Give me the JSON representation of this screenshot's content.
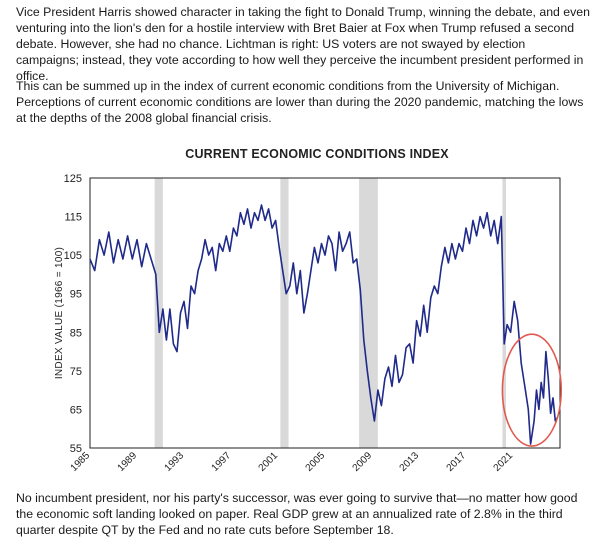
{
  "article": {
    "p1": "Vice President Harris showed character in taking the fight to Donald Trump, winning the debate, and even venturing into the lion's den for a hostile interview with Bret Baier at Fox when Trump refused a second debate. However, she had no chance. Lichtman is right: US voters are not swayed by election campaigns; instead, they vote according to how well they perceive the incumbent president performed in office.",
    "p2": "This can be summed up in the index of current economic conditions from the University of Michigan. Perceptions of current economic conditions are lower than during the 2020 pandemic, matching the lows at the depths of the 2008 global financial crisis.",
    "p3": "No incumbent president, nor his party's successor, was ever going to survive that—no matter how good the economic soft landing looked on paper. Real GDP grew at an annualized rate of 2.8% in the third quarter despite QT by the Fed and no rate cuts before September 18."
  },
  "colors": {
    "line": "#1f2a8a",
    "recession_band": "#d9d9d9",
    "highlight_circle": "#e05a50"
  },
  "chart_data": {
    "type": "line",
    "title": "CURRENT ECONOMIC CONDITIONS INDEX",
    "ylabel": "INDEX VALUE (1966 = 100)",
    "xlabel": "",
    "ylim": [
      55,
      125
    ],
    "xlim": [
      1985,
      2025
    ],
    "yticks": [
      55,
      65,
      75,
      85,
      95,
      105,
      115,
      125
    ],
    "xticks": [
      "1985",
      "1989",
      "1993",
      "1997",
      "2001",
      "2005",
      "2009",
      "2013",
      "2017",
      "2021"
    ],
    "grid": false,
    "recessions": [
      [
        1990.5,
        1991.2
      ],
      [
        2001.2,
        2001.9
      ],
      [
        2007.9,
        2009.5
      ],
      [
        2020.1,
        2020.4
      ]
    ],
    "highlight": {
      "shape": "ellipse",
      "center": [
        2022.6,
        70
      ],
      "radii": [
        2.5,
        14.5
      ]
    },
    "series": [
      {
        "points": [
          [
            1985.0,
            104
          ],
          [
            1985.4,
            101
          ],
          [
            1985.8,
            109
          ],
          [
            1986.2,
            105
          ],
          [
            1986.6,
            111
          ],
          [
            1987.0,
            103
          ],
          [
            1987.4,
            109
          ],
          [
            1987.8,
            104
          ],
          [
            1988.2,
            110
          ],
          [
            1988.6,
            104
          ],
          [
            1989.0,
            109
          ],
          [
            1989.4,
            102
          ],
          [
            1989.8,
            108
          ],
          [
            1990.2,
            104
          ],
          [
            1990.6,
            100
          ],
          [
            1990.9,
            85
          ],
          [
            1991.2,
            91
          ],
          [
            1991.5,
            83
          ],
          [
            1991.8,
            91
          ],
          [
            1992.1,
            82
          ],
          [
            1992.4,
            80
          ],
          [
            1992.7,
            90
          ],
          [
            1993.0,
            93
          ],
          [
            1993.3,
            86
          ],
          [
            1993.6,
            97
          ],
          [
            1993.9,
            95
          ],
          [
            1994.2,
            101
          ],
          [
            1994.5,
            104
          ],
          [
            1994.8,
            109
          ],
          [
            1995.1,
            105
          ],
          [
            1995.4,
            107
          ],
          [
            1995.7,
            101
          ],
          [
            1996.0,
            108
          ],
          [
            1996.3,
            106
          ],
          [
            1996.6,
            110
          ],
          [
            1996.9,
            106
          ],
          [
            1997.2,
            112
          ],
          [
            1997.5,
            110
          ],
          [
            1997.8,
            116
          ],
          [
            1998.1,
            113
          ],
          [
            1998.4,
            117
          ],
          [
            1998.7,
            112
          ],
          [
            1999.0,
            116
          ],
          [
            1999.3,
            114
          ],
          [
            1999.6,
            118
          ],
          [
            1999.9,
            114
          ],
          [
            2000.2,
            117
          ],
          [
            2000.5,
            112
          ],
          [
            2000.8,
            114
          ],
          [
            2001.1,
            107
          ],
          [
            2001.4,
            101
          ],
          [
            2001.7,
            95
          ],
          [
            2002.0,
            97
          ],
          [
            2002.3,
            103
          ],
          [
            2002.6,
            95
          ],
          [
            2002.9,
            101
          ],
          [
            2003.2,
            90
          ],
          [
            2003.5,
            95
          ],
          [
            2003.8,
            101
          ],
          [
            2004.1,
            107
          ],
          [
            2004.4,
            103
          ],
          [
            2004.7,
            108
          ],
          [
            2005.0,
            105
          ],
          [
            2005.3,
            110
          ],
          [
            2005.6,
            108
          ],
          [
            2005.9,
            101
          ],
          [
            2006.2,
            111
          ],
          [
            2006.5,
            106
          ],
          [
            2006.8,
            108
          ],
          [
            2007.1,
            111
          ],
          [
            2007.4,
            103
          ],
          [
            2007.7,
            104
          ],
          [
            2008.0,
            96
          ],
          [
            2008.3,
            83
          ],
          [
            2008.6,
            75
          ],
          [
            2008.9,
            68
          ],
          [
            2009.2,
            62
          ],
          [
            2009.5,
            70
          ],
          [
            2009.8,
            66
          ],
          [
            2010.1,
            73
          ],
          [
            2010.4,
            76
          ],
          [
            2010.7,
            71
          ],
          [
            2011.0,
            79
          ],
          [
            2011.3,
            72
          ],
          [
            2011.6,
            74
          ],
          [
            2011.9,
            81
          ],
          [
            2012.2,
            82
          ],
          [
            2012.5,
            77
          ],
          [
            2012.8,
            88
          ],
          [
            2013.1,
            84
          ],
          [
            2013.4,
            92
          ],
          [
            2013.7,
            85
          ],
          [
            2014.0,
            94
          ],
          [
            2014.3,
            97
          ],
          [
            2014.6,
            95
          ],
          [
            2014.9,
            102
          ],
          [
            2015.2,
            107
          ],
          [
            2015.5,
            103
          ],
          [
            2015.8,
            108
          ],
          [
            2016.1,
            104
          ],
          [
            2016.4,
            108
          ],
          [
            2016.7,
            106
          ],
          [
            2017.0,
            112
          ],
          [
            2017.3,
            108
          ],
          [
            2017.6,
            114
          ],
          [
            2017.9,
            110
          ],
          [
            2018.2,
            115
          ],
          [
            2018.5,
            112
          ],
          [
            2018.8,
            116
          ],
          [
            2019.1,
            110
          ],
          [
            2019.4,
            114
          ],
          [
            2019.7,
            108
          ],
          [
            2020.0,
            115
          ],
          [
            2020.25,
            82
          ],
          [
            2020.5,
            87
          ],
          [
            2020.8,
            85
          ],
          [
            2021.1,
            93
          ],
          [
            2021.4,
            88
          ],
          [
            2021.7,
            77
          ],
          [
            2022.0,
            71
          ],
          [
            2022.3,
            65
          ],
          [
            2022.5,
            56
          ],
          [
            2022.8,
            62
          ],
          [
            2023.0,
            70
          ],
          [
            2023.2,
            65
          ],
          [
            2023.4,
            72
          ],
          [
            2023.6,
            68
          ],
          [
            2023.8,
            80
          ],
          [
            2024.0,
            73
          ],
          [
            2024.2,
            64
          ],
          [
            2024.4,
            68
          ],
          [
            2024.6,
            62
          ],
          [
            2024.8,
            63
          ]
        ]
      }
    ]
  }
}
